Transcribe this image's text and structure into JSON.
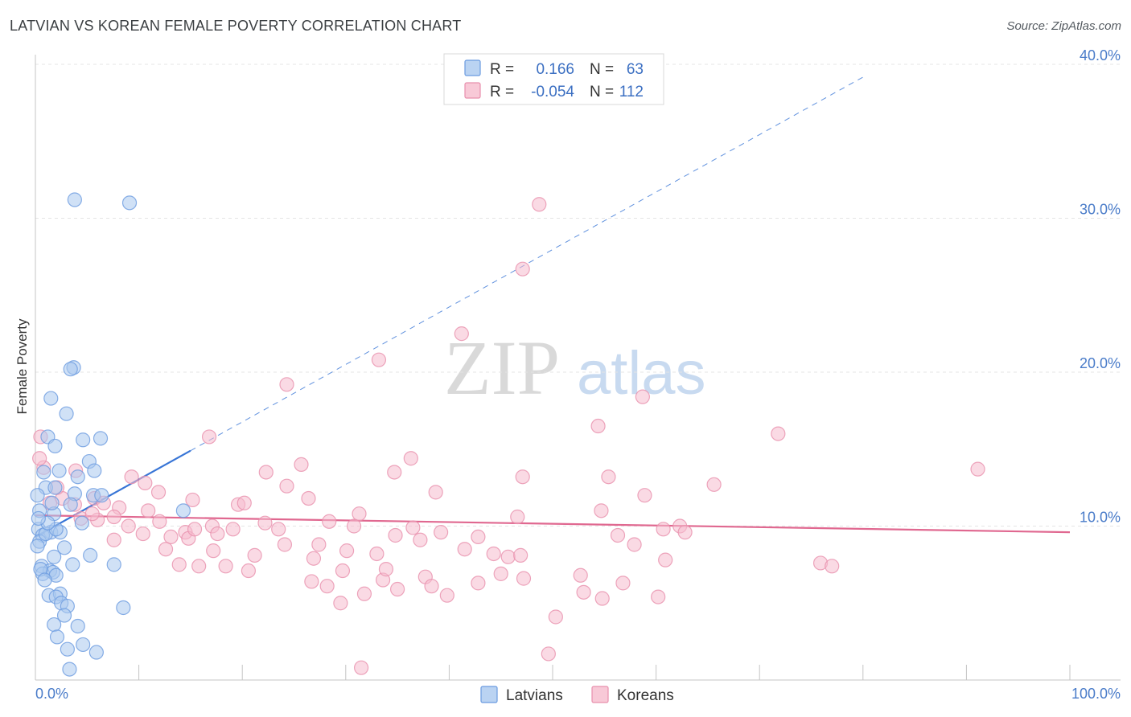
{
  "title": "LATVIAN VS KOREAN FEMALE POVERTY CORRELATION CHART",
  "source": "Source: ZipAtlas.com",
  "watermark": {
    "zip": "ZIP",
    "atlas": "atlas"
  },
  "colors": {
    "latvians_fill": "#a9c8ef",
    "latvians_stroke": "#6b9be0",
    "latvians_line": "#3875d6",
    "koreans_fill": "#f6bccd",
    "koreans_stroke": "#e890ad",
    "koreans_line": "#e06890",
    "tick_text": "#4a7cc9",
    "grid": "#e4e4e4"
  },
  "legend": {
    "r_label": "R =",
    "n_label": "N =",
    "latvians": {
      "r": "0.166",
      "n": "63"
    },
    "koreans": {
      "r": "-0.054",
      "n": "112"
    }
  },
  "chart_data": {
    "type": "scatter",
    "title": "LATVIAN VS KOREAN FEMALE POVERTY CORRELATION CHART",
    "xlabel": "",
    "ylabel": "Female Poverty",
    "xlim": [
      0,
      100
    ],
    "ylim": [
      0,
      40
    ],
    "x_tick_labels": {
      "min": "0.0%",
      "max": "100.0%"
    },
    "y_ticks": [
      10,
      20,
      30,
      40
    ],
    "y_tick_labels": [
      "10.0%",
      "20.0%",
      "30.0%",
      "40.0%"
    ],
    "grid": true,
    "legend_position": "top-center",
    "series": [
      {
        "name": "Latvians",
        "r": 0.166,
        "n": 63,
        "trend": {
          "x0": 0,
          "y0": 9.3,
          "x1": 15,
          "y1": 14.9,
          "dash_to_x": 80
        },
        "points": [
          [
            3.8,
            31.2
          ],
          [
            9.1,
            31.0
          ],
          [
            3.7,
            20.3
          ],
          [
            3.4,
            20.2
          ],
          [
            1.5,
            18.3
          ],
          [
            3.0,
            17.3
          ],
          [
            1.2,
            15.8
          ],
          [
            1.9,
            15.2
          ],
          [
            4.6,
            15.6
          ],
          [
            6.3,
            15.7
          ],
          [
            5.2,
            14.2
          ],
          [
            0.8,
            13.5
          ],
          [
            5.7,
            13.6
          ],
          [
            2.3,
            13.6
          ],
          [
            4.1,
            13.2
          ],
          [
            1.0,
            12.5
          ],
          [
            1.9,
            12.5
          ],
          [
            3.8,
            12.1
          ],
          [
            5.6,
            12.0
          ],
          [
            6.4,
            12.0
          ],
          [
            3.4,
            11.4
          ],
          [
            0.4,
            11.0
          ],
          [
            1.8,
            10.8
          ],
          [
            14.3,
            11.0
          ],
          [
            4.5,
            10.2
          ],
          [
            0.3,
            9.8
          ],
          [
            1.5,
            9.6
          ],
          [
            0.7,
            9.4
          ],
          [
            2.4,
            9.6
          ],
          [
            0.4,
            9.0
          ],
          [
            0.2,
            8.7
          ],
          [
            2.8,
            8.6
          ],
          [
            1.8,
            8.0
          ],
          [
            5.3,
            8.1
          ],
          [
            0.6,
            7.4
          ],
          [
            7.6,
            7.5
          ],
          [
            1.4,
            7.1
          ],
          [
            0.7,
            6.9
          ],
          [
            1.7,
            7.0
          ],
          [
            2.0,
            6.8
          ],
          [
            1.3,
            5.5
          ],
          [
            2.4,
            5.6
          ],
          [
            2.0,
            5.4
          ],
          [
            2.5,
            5.0
          ],
          [
            3.1,
            4.8
          ],
          [
            8.5,
            4.7
          ],
          [
            1.8,
            3.6
          ],
          [
            4.1,
            3.5
          ],
          [
            2.1,
            2.8
          ],
          [
            4.6,
            2.3
          ],
          [
            3.1,
            2.0
          ],
          [
            5.9,
            1.8
          ],
          [
            3.3,
            0.7
          ],
          [
            0.2,
            12.0
          ],
          [
            1.0,
            9.5
          ],
          [
            2.0,
            9.8
          ],
          [
            0.5,
            7.2
          ],
          [
            3.6,
            7.5
          ],
          [
            1.2,
            10.2
          ],
          [
            0.9,
            6.5
          ],
          [
            2.8,
            4.2
          ],
          [
            1.6,
            11.5
          ],
          [
            0.3,
            10.5
          ]
        ]
      },
      {
        "name": "Koreans",
        "r": -0.054,
        "n": 112,
        "trend": {
          "x0": 0,
          "y0": 10.7,
          "x1": 100,
          "y1": 9.6
        },
        "points": [
          [
            48.7,
            30.9
          ],
          [
            47.1,
            26.7
          ],
          [
            41.2,
            22.5
          ],
          [
            33.2,
            20.8
          ],
          [
            24.3,
            19.2
          ],
          [
            58.7,
            18.4
          ],
          [
            54.4,
            16.5
          ],
          [
            71.8,
            16.0
          ],
          [
            16.8,
            15.8
          ],
          [
            0.5,
            15.8
          ],
          [
            36.3,
            14.4
          ],
          [
            25.7,
            14.0
          ],
          [
            0.8,
            13.8
          ],
          [
            3.9,
            13.6
          ],
          [
            22.3,
            13.5
          ],
          [
            34.7,
            13.5
          ],
          [
            47.1,
            13.2
          ],
          [
            55.4,
            13.2
          ],
          [
            91.1,
            13.7
          ],
          [
            9.3,
            13.2
          ],
          [
            10.6,
            12.8
          ],
          [
            11.9,
            12.2
          ],
          [
            24.3,
            12.6
          ],
          [
            38.7,
            12.2
          ],
          [
            58.9,
            12.0
          ],
          [
            65.6,
            12.7
          ],
          [
            26.4,
            11.8
          ],
          [
            15.2,
            11.7
          ],
          [
            19.6,
            11.4
          ],
          [
            20.2,
            11.5
          ],
          [
            1.4,
            11.5
          ],
          [
            2.6,
            11.8
          ],
          [
            3.8,
            11.4
          ],
          [
            5.7,
            11.8
          ],
          [
            6.6,
            11.5
          ],
          [
            8.1,
            11.2
          ],
          [
            10.9,
            11.0
          ],
          [
            7.6,
            10.6
          ],
          [
            31.3,
            10.8
          ],
          [
            46.6,
            10.6
          ],
          [
            54.7,
            11.0
          ],
          [
            4.4,
            10.5
          ],
          [
            6.0,
            10.4
          ],
          [
            12.0,
            10.3
          ],
          [
            9.0,
            10.0
          ],
          [
            17.1,
            10.0
          ],
          [
            22.2,
            10.2
          ],
          [
            28.4,
            10.3
          ],
          [
            36.5,
            9.9
          ],
          [
            30.8,
            10.0
          ],
          [
            14.5,
            9.6
          ],
          [
            13.1,
            9.3
          ],
          [
            10.4,
            9.5
          ],
          [
            17.6,
            9.5
          ],
          [
            19.1,
            9.8
          ],
          [
            23.5,
            9.8
          ],
          [
            37.2,
            9.1
          ],
          [
            39.2,
            9.6
          ],
          [
            42.8,
            9.3
          ],
          [
            60.7,
            9.8
          ],
          [
            62.3,
            10.0
          ],
          [
            62.8,
            9.6
          ],
          [
            56.3,
            9.4
          ],
          [
            14.8,
            9.2
          ],
          [
            7.6,
            9.1
          ],
          [
            17.2,
            8.4
          ],
          [
            24.1,
            8.8
          ],
          [
            27.4,
            8.8
          ],
          [
            30.1,
            8.4
          ],
          [
            33.0,
            8.2
          ],
          [
            44.3,
            8.2
          ],
          [
            45.7,
            8.0
          ],
          [
            46.9,
            8.1
          ],
          [
            57.9,
            8.8
          ],
          [
            60.9,
            7.8
          ],
          [
            75.9,
            7.6
          ],
          [
            77.0,
            7.4
          ],
          [
            13.9,
            7.5
          ],
          [
            15.8,
            7.4
          ],
          [
            20.6,
            7.1
          ],
          [
            29.7,
            7.1
          ],
          [
            33.6,
            6.5
          ],
          [
            37.7,
            6.7
          ],
          [
            42.8,
            6.3
          ],
          [
            45.0,
            6.9
          ],
          [
            47.2,
            6.6
          ],
          [
            53.0,
            5.7
          ],
          [
            56.8,
            6.3
          ],
          [
            26.7,
            6.4
          ],
          [
            28.2,
            6.1
          ],
          [
            31.8,
            5.6
          ],
          [
            35.0,
            5.9
          ],
          [
            38.3,
            6.1
          ],
          [
            39.8,
            5.5
          ],
          [
            29.5,
            5.0
          ],
          [
            50.3,
            4.1
          ],
          [
            54.8,
            5.3
          ],
          [
            60.2,
            5.4
          ],
          [
            49.6,
            1.7
          ],
          [
            31.5,
            0.8
          ],
          [
            15.4,
            9.8
          ],
          [
            12.6,
            8.5
          ],
          [
            18.4,
            7.4
          ],
          [
            21.2,
            8.1
          ],
          [
            33.9,
            7.2
          ],
          [
            52.7,
            6.8
          ],
          [
            41.5,
            8.5
          ],
          [
            34.8,
            9.4
          ],
          [
            5.5,
            10.8
          ],
          [
            2.1,
            12.5
          ],
          [
            0.4,
            14.4
          ],
          [
            26.9,
            7.9
          ]
        ]
      }
    ]
  }
}
